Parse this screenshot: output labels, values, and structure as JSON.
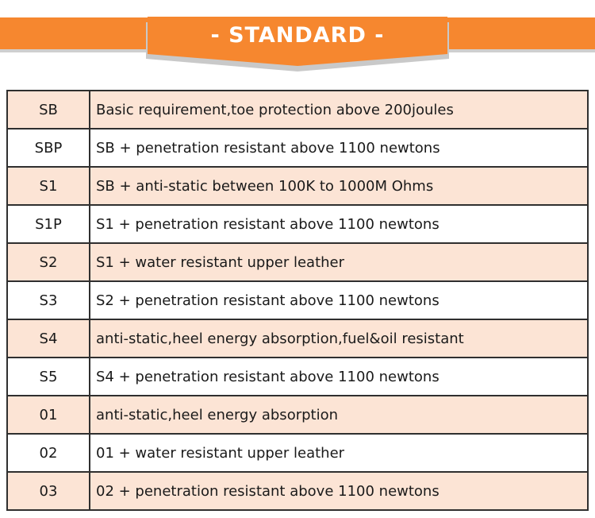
{
  "banner": {
    "title": "- STANDARD -"
  },
  "colors": {
    "orange": "#F6872F",
    "ribbon_shadow": "#C9C9C9",
    "row_shaded": "#FCE4D5",
    "row_plain": "#FFFFFF",
    "table_border": "#2F2F2F",
    "text": "#1A1A1A"
  },
  "table": {
    "rows": [
      {
        "code": "SB",
        "description": "Basic requirement,toe protection above 200joules"
      },
      {
        "code": "SBP",
        "description": "SB + penetration resistant above 1100 newtons"
      },
      {
        "code": "S1",
        "description": "SB + anti-static between 100K to 1000M Ohms"
      },
      {
        "code": "S1P",
        "description": "S1 + penetration resistant above 1100 newtons"
      },
      {
        "code": "S2",
        "description": "S1 + water resistant upper leather"
      },
      {
        "code": "S3",
        "description": "S2 + penetration resistant above 1100 newtons"
      },
      {
        "code": "S4",
        "description": "anti-static,heel energy absorption,fuel&oil resistant"
      },
      {
        "code": "S5",
        "description": "S4 + penetration resistant above 1100 newtons"
      },
      {
        "code": "01",
        "description": "anti-static,heel energy absorption"
      },
      {
        "code": "02",
        "description": "01 + water resistant upper leather"
      },
      {
        "code": "03",
        "description": "02 + penetration resistant above 1100 newtons"
      }
    ]
  }
}
